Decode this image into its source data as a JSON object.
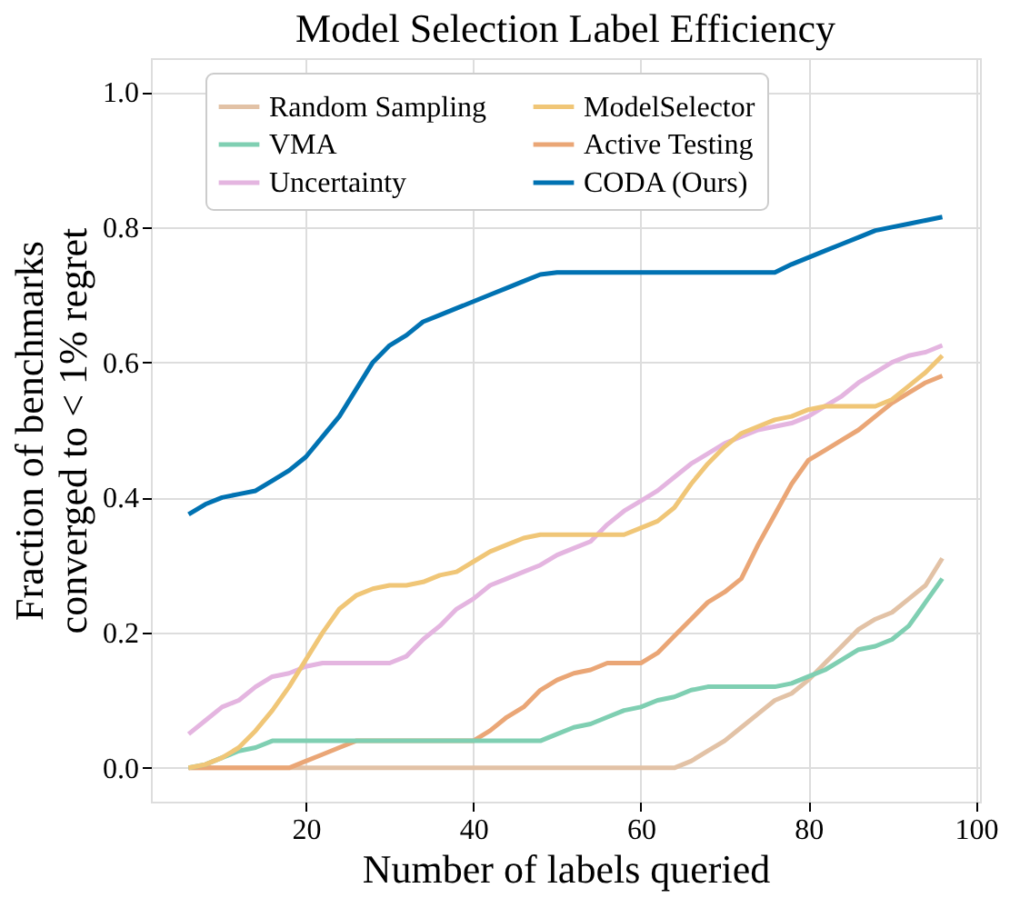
{
  "chart_data": {
    "type": "line",
    "title": "Model Selection Label Efficiency",
    "xlabel": "Number of labels queried",
    "ylabel": "Fraction of benchmarks\nconverged to < 1% regret",
    "x": [
      6,
      8,
      10,
      12,
      14,
      16,
      18,
      20,
      22,
      24,
      26,
      28,
      30,
      32,
      34,
      36,
      38,
      40,
      42,
      44,
      46,
      48,
      50,
      52,
      54,
      56,
      58,
      60,
      62,
      64,
      66,
      68,
      70,
      72,
      74,
      76,
      78,
      80,
      82,
      84,
      86,
      88,
      90,
      92,
      94,
      96
    ],
    "series": [
      {
        "name": "Random Sampling",
        "color": "#e2c2a6",
        "values": [
          0,
          0,
          0,
          0,
          0,
          0,
          0,
          0,
          0,
          0,
          0,
          0,
          0,
          0,
          0,
          0,
          0,
          0,
          0,
          0,
          0,
          0,
          0,
          0,
          0,
          0,
          0,
          0,
          0,
          0,
          0.01,
          0.025,
          0.04,
          0.06,
          0.08,
          0.1,
          0.11,
          0.13,
          0.155,
          0.18,
          0.205,
          0.22,
          0.23,
          0.25,
          0.27,
          0.31
        ]
      },
      {
        "name": "Uncertainty",
        "color": "#e4b5e0",
        "values": [
          0.05,
          0.07,
          0.09,
          0.1,
          0.12,
          0.135,
          0.14,
          0.15,
          0.155,
          0.155,
          0.155,
          0.155,
          0.155,
          0.165,
          0.19,
          0.21,
          0.235,
          0.25,
          0.27,
          0.28,
          0.29,
          0.3,
          0.315,
          0.325,
          0.335,
          0.36,
          0.38,
          0.395,
          0.41,
          0.43,
          0.45,
          0.465,
          0.48,
          0.49,
          0.5,
          0.505,
          0.51,
          0.52,
          0.535,
          0.55,
          0.57,
          0.585,
          0.6,
          0.61,
          0.615,
          0.625
        ]
      },
      {
        "name": "Active Testing",
        "color": "#eaa676",
        "values": [
          0,
          0,
          0,
          0,
          0,
          0,
          0,
          0.01,
          0.02,
          0.03,
          0.04,
          0.04,
          0.04,
          0.04,
          0.04,
          0.04,
          0.04,
          0.04,
          0.055,
          0.075,
          0.09,
          0.115,
          0.13,
          0.14,
          0.145,
          0.155,
          0.155,
          0.155,
          0.17,
          0.195,
          0.22,
          0.245,
          0.26,
          0.28,
          0.33,
          0.375,
          0.42,
          0.455,
          0.47,
          0.485,
          0.5,
          0.52,
          0.54,
          0.555,
          0.57,
          0.58
        ]
      },
      {
        "name": "VMA",
        "color": "#7fcfb2",
        "values": [
          0,
          0.005,
          0.015,
          0.025,
          0.03,
          0.04,
          0.04,
          0.04,
          0.04,
          0.04,
          0.04,
          0.04,
          0.04,
          0.04,
          0.04,
          0.04,
          0.04,
          0.04,
          0.04,
          0.04,
          0.04,
          0.04,
          0.05,
          0.06,
          0.065,
          0.075,
          0.085,
          0.09,
          0.1,
          0.105,
          0.115,
          0.12,
          0.12,
          0.12,
          0.12,
          0.12,
          0.125,
          0.135,
          0.145,
          0.16,
          0.175,
          0.18,
          0.19,
          0.21,
          0.245,
          0.28
        ]
      },
      {
        "name": "ModelSelector",
        "color": "#f0c677",
        "values": [
          0,
          0.005,
          0.015,
          0.03,
          0.055,
          0.085,
          0.12,
          0.16,
          0.2,
          0.235,
          0.255,
          0.265,
          0.27,
          0.27,
          0.275,
          0.285,
          0.29,
          0.305,
          0.32,
          0.33,
          0.34,
          0.345,
          0.345,
          0.345,
          0.345,
          0.345,
          0.345,
          0.355,
          0.365,
          0.385,
          0.42,
          0.45,
          0.475,
          0.495,
          0.505,
          0.515,
          0.52,
          0.53,
          0.535,
          0.535,
          0.535,
          0.535,
          0.545,
          0.565,
          0.585,
          0.61
        ]
      },
      {
        "name": "CODA (Ours)",
        "color": "#0072b2",
        "values": [
          0.375,
          0.39,
          0.4,
          0.405,
          0.41,
          0.425,
          0.44,
          0.46,
          0.49,
          0.52,
          0.56,
          0.6,
          0.625,
          0.64,
          0.66,
          0.67,
          0.68,
          0.69,
          0.7,
          0.71,
          0.72,
          0.73,
          0.733,
          0.733,
          0.733,
          0.733,
          0.733,
          0.733,
          0.733,
          0.733,
          0.733,
          0.733,
          0.733,
          0.733,
          0.733,
          0.733,
          0.745,
          0.755,
          0.765,
          0.775,
          0.785,
          0.795,
          0.8,
          0.805,
          0.81,
          0.815
        ]
      }
    ],
    "xlim": [
      1.5,
      100.5
    ],
    "ylim": [
      -0.05,
      1.05
    ],
    "xticks": [
      20,
      40,
      60,
      80,
      100
    ],
    "yticks": [
      {
        "value": 0,
        "label": "0.0"
      },
      {
        "value": 0.2,
        "label": "0.2"
      },
      {
        "value": 0.4,
        "label": "0.4"
      },
      {
        "value": 0.6,
        "label": "0.6"
      },
      {
        "value": 0.8,
        "label": "0.8"
      },
      {
        "value": 1.0,
        "label": "1.0"
      }
    ],
    "grid": true,
    "legend": "top",
    "line_style": "solid",
    "marker": "none"
  }
}
